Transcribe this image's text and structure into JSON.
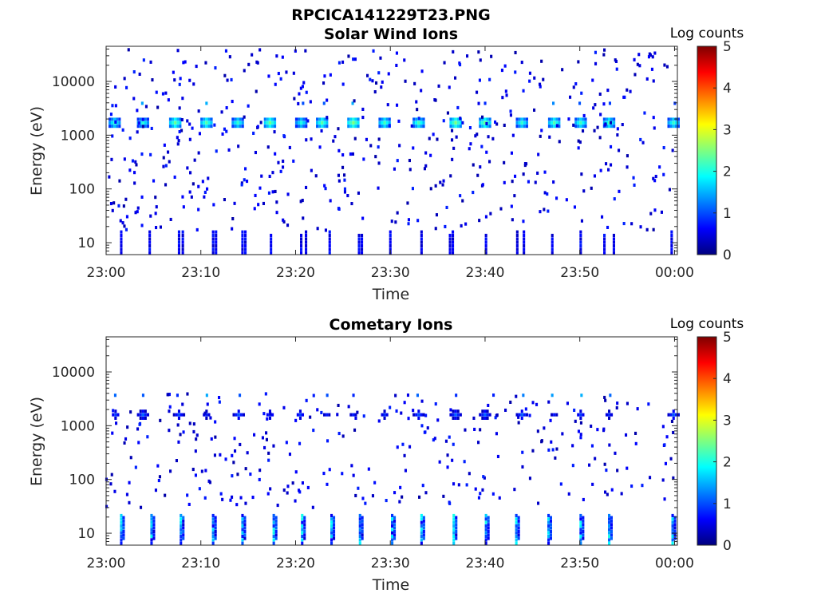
{
  "figure": {
    "title": "RPCICA141229T23.PNG"
  },
  "colormap_stops": [
    "#00007f",
    "#0000ff",
    "#007fff",
    "#00ffff",
    "#7fff7f",
    "#ffff00",
    "#ff7f00",
    "#ff0000",
    "#7f0000"
  ],
  "chart_data": [
    {
      "type": "heatmap",
      "title": "Solar Wind Ions",
      "xlabel": "Time",
      "ylabel": "Energy (eV)",
      "x_ticks": [
        "23:00",
        "23:10",
        "23:20",
        "23:30",
        "23:40",
        "23:50",
        "00:00"
      ],
      "x_range_minutes": [
        0,
        60.3
      ],
      "y_scale": "log",
      "y_ticks": [
        "10",
        "100",
        "1000",
        "10000"
      ],
      "y_range": [
        6,
        45000
      ],
      "colorbar": {
        "label": "Log counts",
        "range": [
          0,
          5
        ],
        "ticks": [
          "0",
          "1",
          "2",
          "3",
          "4",
          "5"
        ]
      },
      "main_band_energy": 1700,
      "main_band_times": [
        0.9,
        3.9,
        7.3,
        10.6,
        13.9,
        17.3,
        20.6,
        22.8,
        26.1,
        29.4,
        33.0,
        36.9,
        40.0,
        43.9,
        47.3,
        50.1,
        53.1,
        59.9
      ],
      "low_energy_times": [
        1.6,
        4.6,
        7.7,
        8.1,
        11.3,
        11.6,
        14.4,
        14.7,
        17.4,
        20.6,
        21.1,
        23.6,
        26.7,
        27.0,
        30.0,
        33.3,
        36.3,
        36.6,
        40.1,
        43.4,
        44.1,
        47.1,
        50.1,
        52.6,
        53.6,
        59.7
      ]
    },
    {
      "type": "heatmap",
      "title": "Cometary Ions",
      "xlabel": "Time",
      "ylabel": "Energy (eV)",
      "x_ticks": [
        "23:00",
        "23:10",
        "23:20",
        "23:30",
        "23:40",
        "23:50",
        "00:00"
      ],
      "x_range_minutes": [
        0,
        60.3
      ],
      "y_scale": "log",
      "y_ticks": [
        "10",
        "100",
        "1000",
        "10000"
      ],
      "y_range": [
        6,
        45000
      ],
      "colorbar": {
        "label": "Log counts",
        "range": [
          0,
          5
        ],
        "ticks": [
          "0",
          "1",
          "2",
          "3",
          "4",
          "5"
        ]
      },
      "main_band_energy": 1600,
      "main_band_times": [
        1.0,
        3.9,
        7.7,
        10.6,
        14.0,
        17.3,
        20.5,
        23.3,
        26.1,
        29.4,
        33.0,
        36.9,
        40.0,
        43.9,
        47.3,
        50.1,
        53.1,
        59.9
      ],
      "low_energy_times": [
        1.6,
        4.8,
        7.9,
        11.3,
        14.4,
        17.7,
        20.7,
        23.8,
        26.8,
        30.2,
        33.3,
        36.7,
        40.1,
        43.3,
        46.7,
        50.1,
        53.1,
        59.8
      ]
    }
  ]
}
